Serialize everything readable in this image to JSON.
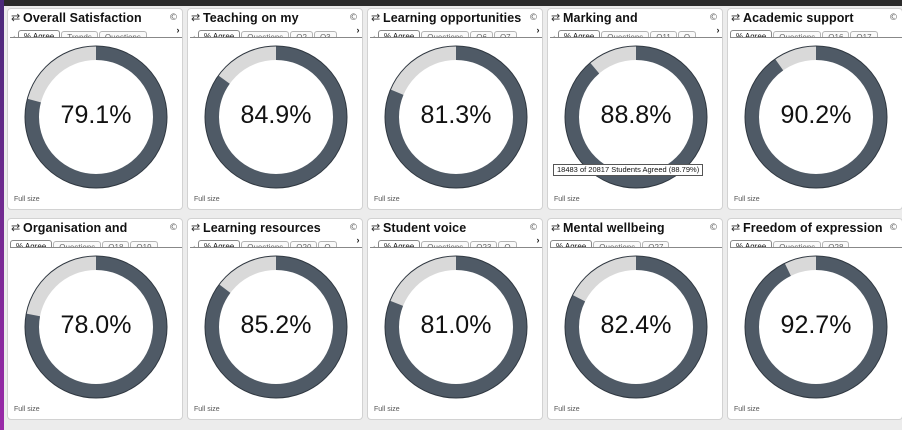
{
  "colors": {
    "ring": "#4f5a66",
    "track": "#d9d9d9"
  },
  "icons": {
    "refresh": "refresh-icon",
    "copyright": "copyright-icon"
  },
  "cards": [
    {
      "title": "Overall Satisfaction",
      "pct": 79.1,
      "pct_label": "79.1%",
      "tabs": [
        "% Agree",
        "Trends",
        "Questions"
      ],
      "left_arrow": "‹",
      "right_arrow": "›",
      "full": "Full size",
      "copyright": "©"
    },
    {
      "title": "Teaching on my",
      "pct": 84.9,
      "pct_label": "84.9%",
      "tabs": [
        "% Agree",
        "Questions",
        "Q2",
        "Q3"
      ],
      "left_arrow": "‹",
      "right_arrow": "›",
      "full": "Full size",
      "copyright": "©"
    },
    {
      "title": "Learning opportunities",
      "pct": 81.3,
      "pct_label": "81.3%",
      "tabs": [
        "% Agree",
        "Questions",
        "Q6",
        "Q7"
      ],
      "left_arrow": "‹",
      "right_arrow": "›",
      "full": "Full size",
      "copyright": "©"
    },
    {
      "title": "Marking and",
      "pct": 88.8,
      "pct_label": "88.8%",
      "tabs": [
        "% Agree",
        "Questions",
        "Q11",
        "Q"
      ],
      "left_arrow": "‹",
      "right_arrow": "›",
      "full": "Full size",
      "copyright": "©"
    },
    {
      "title": "Academic support",
      "pct": 90.2,
      "pct_label": "90.2%",
      "tabs": [
        "% Agree",
        "Questions",
        "Q16",
        "Q17"
      ],
      "left_arrow": "",
      "right_arrow": "",
      "full": "Full size",
      "copyright": "©"
    },
    {
      "title": "Organisation and",
      "pct": 78.0,
      "pct_label": "78.0%",
      "tabs": [
        "% Agree",
        "Questions",
        "Q18",
        "Q19"
      ],
      "left_arrow": "",
      "right_arrow": "",
      "full": "Full size",
      "copyright": "©"
    },
    {
      "title": "Learning resources",
      "pct": 85.2,
      "pct_label": "85.2%",
      "tabs": [
        "% Agree",
        "Questions",
        "Q20",
        "Q"
      ],
      "left_arrow": "‹",
      "right_arrow": "›",
      "full": "Full size",
      "copyright": "©"
    },
    {
      "title": "Student voice",
      "pct": 81.0,
      "pct_label": "81.0%",
      "tabs": [
        "% Agree",
        "Questions",
        "Q23",
        "Q"
      ],
      "left_arrow": "‹",
      "right_arrow": "›",
      "full": "Full size",
      "copyright": "©"
    },
    {
      "title": "Mental wellbeing",
      "pct": 82.4,
      "pct_label": "82.4%",
      "tabs": [
        "% Agree",
        "Questions",
        "Q27"
      ],
      "left_arrow": "",
      "right_arrow": "",
      "full": "Full size",
      "copyright": "©"
    },
    {
      "title": "Freedom of expression",
      "pct": 92.7,
      "pct_label": "92.7%",
      "tabs": [
        "% Agree",
        "Questions",
        "Q28"
      ],
      "left_arrow": "",
      "right_arrow": "",
      "full": "Full size",
      "copyright": "©"
    }
  ],
  "tooltip": "18483 of 20817 Students Agreed (88.79%)"
}
